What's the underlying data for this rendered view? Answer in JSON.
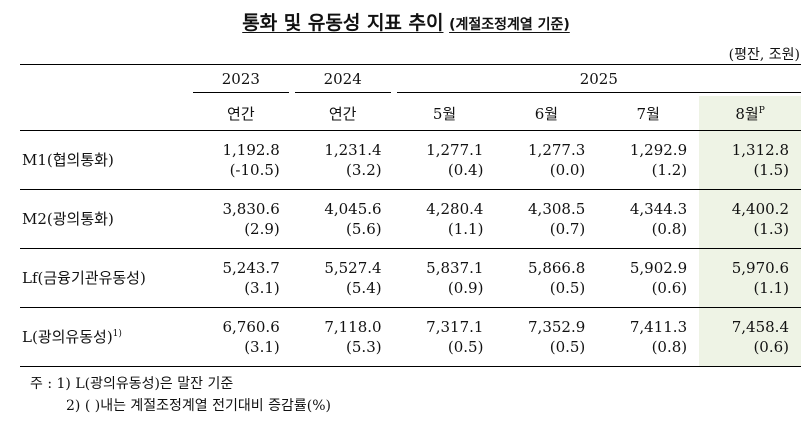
{
  "title": {
    "main": "통화 및 유동성 지표 추이",
    "sub": "(계절조정계열 기준)"
  },
  "unit": "(평잔, 조원)",
  "header": {
    "years": [
      "2023",
      "2024",
      "2025"
    ],
    "periods": [
      "연간",
      "연간",
      "5월",
      "6월",
      "7월",
      "8월"
    ],
    "preliminary_mark": "P"
  },
  "highlight_color": "#eef3e5",
  "rows": [
    {
      "label": "M1(협의통화)",
      "sup": "",
      "values": [
        "1,192.8",
        "1,231.4",
        "1,277.1",
        "1,277.3",
        "1,292.9",
        "1,312.8"
      ],
      "changes": [
        "(-10.5)",
        "(3.2)",
        "(0.4)",
        "(0.0)",
        "(1.2)",
        "(1.5)"
      ]
    },
    {
      "label": "M2(광의통화)",
      "sup": "",
      "values": [
        "3,830.6",
        "4,045.6",
        "4,280.4",
        "4,308.5",
        "4,344.3",
        "4,400.2"
      ],
      "changes": [
        "(2.9)",
        "(5.6)",
        "(1.1)",
        "(0.7)",
        "(0.8)",
        "(1.3)"
      ]
    },
    {
      "label": "Lf(금융기관유동성)",
      "sup": "",
      "values": [
        "5,243.7",
        "5,527.4",
        "5,837.1",
        "5,866.8",
        "5,902.9",
        "5,970.6"
      ],
      "changes": [
        "(3.1)",
        "(5.4)",
        "(0.9)",
        "(0.5)",
        "(0.6)",
        "(1.1)"
      ]
    },
    {
      "label": "L(광의유동성)",
      "sup": "1)",
      "values": [
        "6,760.6",
        "7,118.0",
        "7,317.1",
        "7,352.9",
        "7,411.3",
        "7,458.4"
      ],
      "changes": [
        "(3.1)",
        "(5.3)",
        "(0.5)",
        "(0.5)",
        "(0.8)",
        "(0.6)"
      ]
    }
  ],
  "notes": {
    "line1": "주 : 1) L(광의유동성)은 말잔 기준",
    "line2": "2) (    )내는 계절조정계열 전기대비 증감률(%)"
  }
}
